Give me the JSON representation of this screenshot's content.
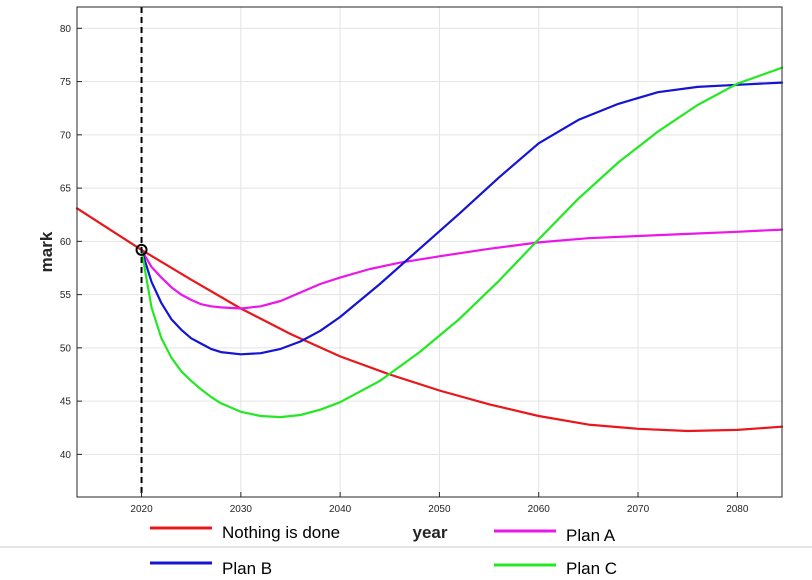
{
  "chart_data": {
    "type": "line",
    "title": "",
    "xlabel": "year",
    "ylabel": "mark",
    "xlim": [
      2013.5,
      2084.5
    ],
    "ylim": [
      36,
      82
    ],
    "xticks": [
      2020,
      2030,
      2040,
      2050,
      2060,
      2070,
      2080
    ],
    "yticks": [
      40,
      45,
      50,
      55,
      60,
      65,
      70,
      75,
      80
    ],
    "grid": true,
    "legend": "below",
    "annotations": [
      {
        "kind": "vertical-dashed-line",
        "x": 2020,
        "color": "#000000"
      },
      {
        "kind": "circle-marker",
        "x": 2020,
        "y": 59.2,
        "color": "#000000"
      }
    ],
    "series": [
      {
        "name": "Nothing is done",
        "color": "#e8171b",
        "x": [
          2013.5,
          2016,
          2020,
          2025,
          2030,
          2035,
          2040,
          2045,
          2050,
          2055,
          2060,
          2065,
          2070,
          2075,
          2080,
          2084.5
        ],
        "y": [
          63.1,
          61.6,
          59.2,
          56.4,
          53.7,
          51.3,
          49.2,
          47.5,
          46.0,
          44.7,
          43.6,
          42.8,
          42.4,
          42.2,
          42.3,
          42.6
        ]
      },
      {
        "name": "Plan A",
        "color": "#ea16ea",
        "x": [
          2020,
          2021,
          2022,
          2023,
          2024,
          2025,
          2026,
          2027,
          2028,
          2030,
          2032,
          2034,
          2036,
          2038,
          2040,
          2043,
          2046,
          2050,
          2055,
          2060,
          2065,
          2070,
          2075,
          2080,
          2084.5
        ],
        "y": [
          59.2,
          57.6,
          56.6,
          55.7,
          55.0,
          54.5,
          54.1,
          53.9,
          53.8,
          53.7,
          53.9,
          54.4,
          55.2,
          56.0,
          56.6,
          57.4,
          58.0,
          58.6,
          59.3,
          59.9,
          60.3,
          60.5,
          60.7,
          60.9,
          61.1
        ]
      },
      {
        "name": "Plan B",
        "color": "#1414d2",
        "x": [
          2020,
          2021,
          2022,
          2023,
          2024,
          2025,
          2026,
          2027,
          2028,
          2030,
          2032,
          2034,
          2036,
          2038,
          2040,
          2044,
          2048,
          2052,
          2056,
          2060,
          2064,
          2068,
          2072,
          2076,
          2080,
          2084.5
        ],
        "y": [
          59.2,
          56.2,
          54.2,
          52.7,
          51.7,
          50.9,
          50.4,
          49.9,
          49.6,
          49.4,
          49.5,
          49.9,
          50.6,
          51.6,
          52.9,
          56.0,
          59.3,
          62.6,
          66.0,
          69.2,
          71.4,
          72.9,
          74.0,
          74.5,
          74.7,
          74.9
        ]
      },
      {
        "name": "Plan C",
        "color": "#24e824",
        "x": [
          2020,
          2021,
          2022,
          2023,
          2024,
          2025,
          2026,
          2027,
          2028,
          2030,
          2032,
          2034,
          2036,
          2038,
          2040,
          2044,
          2048,
          2052,
          2056,
          2060,
          2064,
          2068,
          2072,
          2076,
          2080,
          2084.5
        ],
        "y": [
          59.2,
          53.8,
          50.9,
          49.1,
          47.8,
          46.9,
          46.1,
          45.4,
          44.8,
          44.0,
          43.6,
          43.5,
          43.7,
          44.2,
          44.9,
          46.9,
          49.6,
          52.7,
          56.3,
          60.2,
          64.0,
          67.4,
          70.3,
          72.8,
          74.8,
          76.3
        ]
      }
    ]
  }
}
